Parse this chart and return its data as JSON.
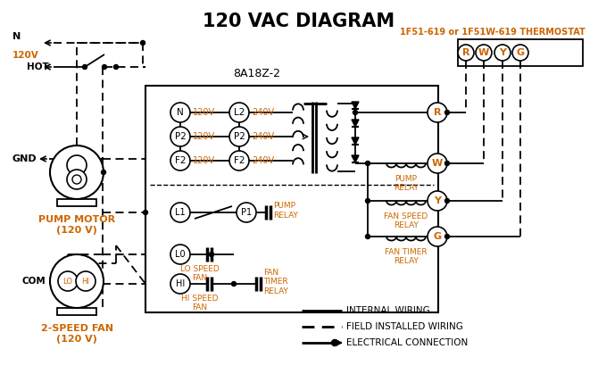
{
  "title": "120 VAC DIAGRAM",
  "bg_color": "#ffffff",
  "line_color": "#000000",
  "orange_color": "#cc6600",
  "thermostat_label": "1F51-619 or 1F51W-619 THERMOSTAT",
  "control_box_label": "8A18Z-2",
  "terminal_labels_RWGY": [
    "R",
    "W",
    "Y",
    "G"
  ],
  "pump_motor_label": "PUMP MOTOR\n(120 V)",
  "fan_label": "2-SPEED FAN\n(120 V)",
  "left_terminals": [
    "N",
    "P2",
    "F2"
  ],
  "right_terminals": [
    "L2",
    "P2",
    "F2"
  ],
  "left_voltages": [
    "120V",
    "120V",
    "120V"
  ],
  "right_voltages": [
    "240V",
    "240V",
    "240V"
  ],
  "legend_internal": "INTERNAL WIRING",
  "legend_field": "FIELD INSTALLED WIRING",
  "legend_elec": "ELECTRICAL CONNECTION"
}
